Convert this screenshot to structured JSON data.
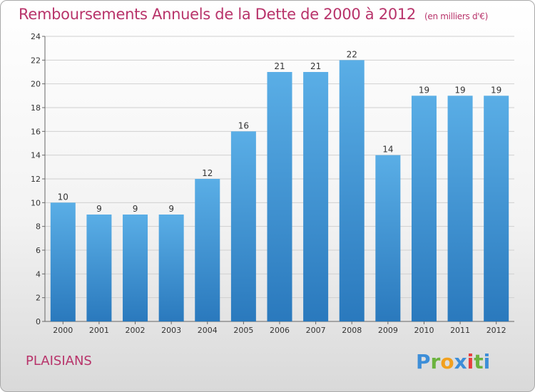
{
  "title": "Remboursements Annuels de la Dette de 2000 à 2012",
  "subtitle": "(en milliers d'€)",
  "location": "PLAISIANS",
  "brand": "Proxiti",
  "colors": {
    "title": "#b8336a",
    "bar_light": "#5aaee6",
    "bar_dark": "#2a79bd",
    "grid": "#d0d0d0"
  },
  "chart_data": {
    "type": "bar",
    "title": "Remboursements Annuels de la Dette de 2000 à 2012",
    "categories": [
      "2000",
      "2001",
      "2002",
      "2003",
      "2004",
      "2005",
      "2006",
      "2007",
      "2008",
      "2009",
      "2010",
      "2011",
      "2012"
    ],
    "values": [
      10,
      9,
      9,
      9,
      12,
      16,
      21,
      21,
      22,
      14,
      19,
      19,
      19
    ],
    "ylim": [
      0,
      24
    ],
    "yticks": [
      0,
      2,
      4,
      6,
      8,
      10,
      12,
      14,
      16,
      18,
      20,
      22,
      24
    ],
    "grid": true,
    "data_labels": true
  }
}
